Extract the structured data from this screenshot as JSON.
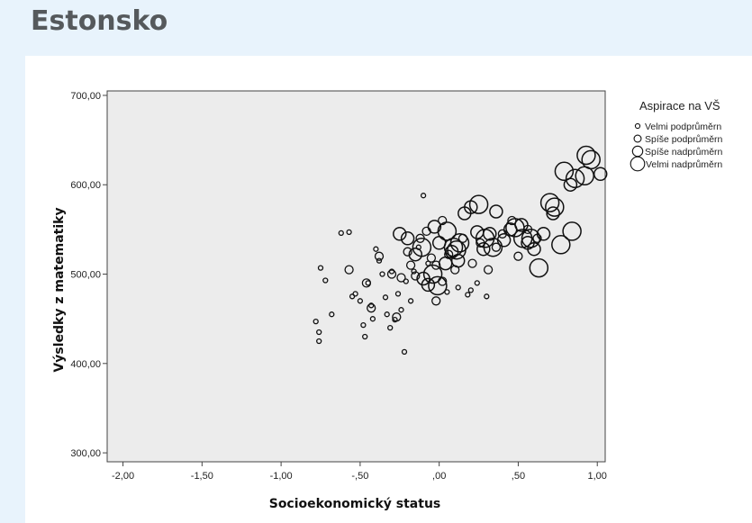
{
  "page": {
    "title": "Estonsko"
  },
  "chart_data": {
    "type": "scatter",
    "title": "",
    "xlabel": "Socioekonomický status",
    "ylabel": "Výsledky z matematiky",
    "xlim": [
      -2.1,
      1.05
    ],
    "ylim": [
      290,
      705
    ],
    "xticks": [
      -2.0,
      -1.5,
      -1.0,
      -0.5,
      0.0,
      0.5,
      1.0
    ],
    "xtick_labels": [
      "-2,00",
      "-1,50",
      "-1,00",
      "-,50",
      ",00",
      ",50",
      "1,00"
    ],
    "yticks": [
      300,
      400,
      500,
      600,
      700
    ],
    "ytick_labels": [
      "300,00",
      "400,00",
      "500,00",
      "600,00",
      "700,00"
    ],
    "grid": false,
    "legend_position": "right",
    "legend": {
      "title": "Aspirace na VŠ",
      "entries": [
        "Velmi podprůměrn",
        "Spíše podprůměrn",
        "Spíše nadprůměrn",
        "Velmi nadprůměrn"
      ]
    },
    "size_levels": [
      1,
      2,
      3,
      4
    ],
    "points": [
      [
        -0.78,
        447,
        1
      ],
      [
        -0.76,
        425,
        1
      ],
      [
        -0.76,
        435,
        1
      ],
      [
        -0.75,
        507,
        1
      ],
      [
        -0.72,
        493,
        1
      ],
      [
        -0.68,
        455,
        1
      ],
      [
        -0.62,
        546,
        1
      ],
      [
        -0.57,
        547,
        1
      ],
      [
        -0.55,
        475,
        1
      ],
      [
        -0.53,
        478,
        1
      ],
      [
        -0.5,
        470,
        1
      ],
      [
        -0.48,
        443,
        1
      ],
      [
        -0.47,
        430,
        1
      ],
      [
        -0.45,
        490,
        1
      ],
      [
        -0.43,
        465,
        1
      ],
      [
        -0.42,
        450,
        1
      ],
      [
        -0.4,
        528,
        1
      ],
      [
        -0.38,
        515,
        1
      ],
      [
        -0.36,
        500,
        1
      ],
      [
        -0.34,
        474,
        1
      ],
      [
        -0.33,
        455,
        1
      ],
      [
        -0.31,
        440,
        1
      ],
      [
        -0.3,
        503,
        1
      ],
      [
        -0.28,
        449,
        1
      ],
      [
        -0.26,
        478,
        1
      ],
      [
        -0.24,
        460,
        1
      ],
      [
        -0.22,
        413,
        1
      ],
      [
        -0.21,
        492,
        1
      ],
      [
        -0.18,
        470,
        1
      ],
      [
        -0.16,
        503,
        1
      ],
      [
        -0.13,
        530,
        1
      ],
      [
        -0.1,
        588,
        1
      ],
      [
        -0.07,
        512,
        1
      ],
      [
        0.05,
        480,
        1
      ],
      [
        0.12,
        485,
        1
      ],
      [
        0.18,
        477,
        1
      ],
      [
        0.2,
        482,
        1
      ],
      [
        0.24,
        490,
        1
      ],
      [
        0.3,
        475,
        1
      ],
      [
        -0.57,
        505,
        2
      ],
      [
        -0.46,
        490,
        2
      ],
      [
        -0.43,
        462,
        2
      ],
      [
        -0.38,
        520,
        2
      ],
      [
        -0.3,
        500,
        2
      ],
      [
        -0.27,
        452,
        2
      ],
      [
        -0.24,
        496,
        2
      ],
      [
        -0.2,
        525,
        2
      ],
      [
        -0.18,
        510,
        2
      ],
      [
        -0.15,
        498,
        2
      ],
      [
        -0.12,
        540,
        2
      ],
      [
        -0.08,
        548,
        2
      ],
      [
        -0.05,
        518,
        2
      ],
      [
        -0.02,
        510,
        2
      ],
      [
        0.02,
        560,
        2
      ],
      [
        0.06,
        522,
        2
      ],
      [
        0.1,
        505,
        2
      ],
      [
        0.15,
        540,
        2
      ],
      [
        0.21,
        512,
        2
      ],
      [
        0.26,
        535,
        2
      ],
      [
        0.31,
        505,
        2
      ],
      [
        0.36,
        530,
        2
      ],
      [
        0.4,
        545,
        2
      ],
      [
        0.46,
        560,
        2
      ],
      [
        0.5,
        520,
        2
      ],
      [
        0.56,
        550,
        2
      ],
      [
        0.62,
        540,
        2
      ],
      [
        -0.02,
        470,
        2
      ],
      [
        0.02,
        492,
        2
      ],
      [
        -0.2,
        540,
        3
      ],
      [
        -0.15,
        522,
        3
      ],
      [
        -0.1,
        495,
        3
      ],
      [
        -0.07,
        488,
        3
      ],
      [
        -0.03,
        553,
        3
      ],
      [
        0.0,
        535,
        3
      ],
      [
        0.04,
        512,
        3
      ],
      [
        0.08,
        525,
        3
      ],
      [
        0.12,
        515,
        3
      ],
      [
        0.16,
        568,
        3
      ],
      [
        0.2,
        575,
        3
      ],
      [
        0.24,
        547,
        3
      ],
      [
        0.28,
        528,
        3
      ],
      [
        0.32,
        545,
        3
      ],
      [
        0.36,
        570,
        3
      ],
      [
        0.41,
        538,
        3
      ],
      [
        0.45,
        550,
        3
      ],
      [
        0.52,
        555,
        3
      ],
      [
        0.56,
        535,
        3
      ],
      [
        0.6,
        528,
        3
      ],
      [
        0.66,
        545,
        3
      ],
      [
        0.72,
        568,
        3
      ],
      [
        0.83,
        600,
        3
      ],
      [
        1.02,
        612,
        3
      ],
      [
        -0.25,
        545,
        3
      ],
      [
        -0.11,
        530,
        4
      ],
      [
        -0.04,
        500,
        4
      ],
      [
        0.05,
        548,
        4
      ],
      [
        0.09,
        530,
        4
      ],
      [
        0.11,
        527,
        4
      ],
      [
        0.13,
        535,
        4
      ],
      [
        0.25,
        578,
        4
      ],
      [
        0.29,
        540,
        4
      ],
      [
        0.34,
        530,
        4
      ],
      [
        0.48,
        552,
        4
      ],
      [
        0.53,
        540,
        4
      ],
      [
        0.58,
        540,
        4
      ],
      [
        0.63,
        507,
        4
      ],
      [
        0.7,
        580,
        4
      ],
      [
        0.73,
        575,
        4
      ],
      [
        0.77,
        533,
        4
      ],
      [
        0.79,
        615,
        4
      ],
      [
        0.84,
        548,
        4
      ],
      [
        0.86,
        607,
        4
      ],
      [
        0.93,
        633,
        4
      ],
      [
        0.96,
        628,
        4
      ],
      [
        0.92,
        610,
        4
      ],
      [
        -0.01,
        487,
        4
      ]
    ]
  }
}
